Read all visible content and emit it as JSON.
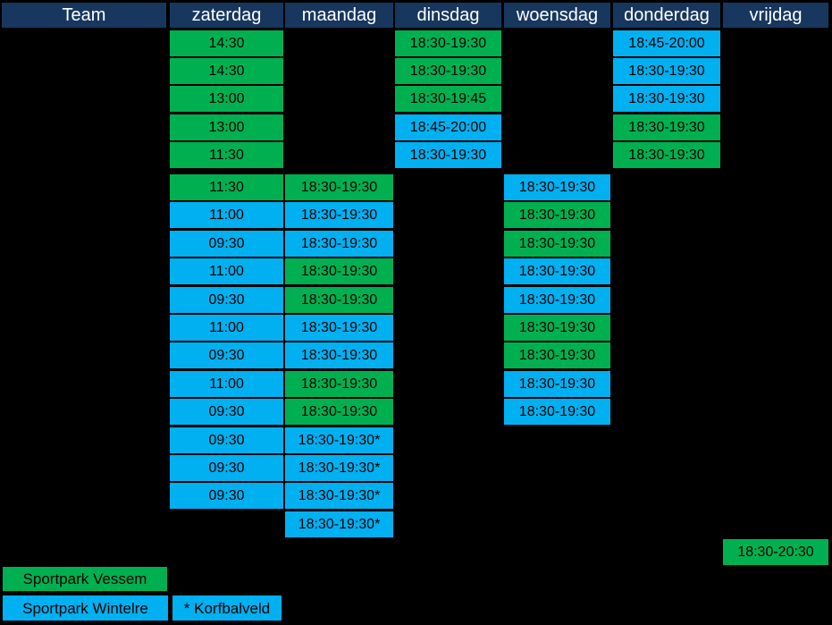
{
  "colors": {
    "background": "#000000",
    "header_bg": "#17375E",
    "header_text": "#FFFFFF",
    "vessem_green": "#00B050",
    "wintelre_blue": "#00B0F0",
    "cell_text": "#000000"
  },
  "columns": [
    {
      "id": "team",
      "label": "Team"
    },
    {
      "id": "zaterdag",
      "label": "zaterdag"
    },
    {
      "id": "maandag",
      "label": "maandag"
    },
    {
      "id": "dinsdag",
      "label": "dinsdag"
    },
    {
      "id": "woensdag",
      "label": "woensdag"
    },
    {
      "id": "donderdag",
      "label": "donderdag"
    },
    {
      "id": "vrijdag",
      "label": "vrijdag"
    }
  ],
  "rows": [
    {
      "cells": [
        {
          "col": "zaterdag",
          "text": "14:30",
          "venue": "vessem"
        },
        {
          "col": "dinsdag",
          "text": "18:30-19:30",
          "venue": "vessem"
        },
        {
          "col": "donderdag",
          "text": "18:45-20:00",
          "venue": "wintelre"
        }
      ]
    },
    {
      "cells": [
        {
          "col": "zaterdag",
          "text": "14:30",
          "venue": "vessem"
        },
        {
          "col": "dinsdag",
          "text": "18:30-19:30",
          "venue": "vessem"
        },
        {
          "col": "donderdag",
          "text": "18:30-19:30",
          "venue": "wintelre"
        }
      ]
    },
    {
      "cells": [
        {
          "col": "zaterdag",
          "text": "13:00",
          "venue": "vessem"
        },
        {
          "col": "dinsdag",
          "text": "18:30-19:45",
          "venue": "vessem"
        },
        {
          "col": "donderdag",
          "text": "18:30-19:30",
          "venue": "wintelre"
        }
      ]
    },
    {
      "cells": [
        {
          "col": "zaterdag",
          "text": "13:00",
          "venue": "vessem"
        },
        {
          "col": "dinsdag",
          "text": "18:45-20:00",
          "venue": "wintelre"
        },
        {
          "col": "donderdag",
          "text": "18:30-19:30",
          "venue": "vessem"
        }
      ]
    },
    {
      "cells": [
        {
          "col": "zaterdag",
          "text": "11:30",
          "venue": "vessem"
        },
        {
          "col": "dinsdag",
          "text": "18:30-19:30",
          "venue": "wintelre"
        },
        {
          "col": "donderdag",
          "text": "18:30-19:30",
          "venue": "vessem"
        }
      ]
    },
    {
      "cells": [
        {
          "col": "zaterdag",
          "text": "11:30",
          "venue": "vessem"
        },
        {
          "col": "maandag",
          "text": "18:30-19:30",
          "venue": "vessem"
        },
        {
          "col": "woensdag",
          "text": "18:30-19:30",
          "venue": "wintelre"
        }
      ]
    },
    {
      "cells": [
        {
          "col": "zaterdag",
          "text": "11:00",
          "venue": "wintelre"
        },
        {
          "col": "maandag",
          "text": "18:30-19:30",
          "venue": "wintelre"
        },
        {
          "col": "woensdag",
          "text": "18:30-19:30",
          "venue": "vessem"
        }
      ]
    },
    {
      "cells": [
        {
          "col": "zaterdag",
          "text": "09:30",
          "venue": "wintelre"
        },
        {
          "col": "maandag",
          "text": "18:30-19:30",
          "venue": "wintelre"
        },
        {
          "col": "woensdag",
          "text": "18:30-19:30",
          "venue": "vessem"
        }
      ]
    },
    {
      "cells": [
        {
          "col": "zaterdag",
          "text": "11:00",
          "venue": "wintelre"
        },
        {
          "col": "maandag",
          "text": "18:30-19:30",
          "venue": "vessem"
        },
        {
          "col": "woensdag",
          "text": "18:30-19:30",
          "venue": "wintelre"
        }
      ]
    },
    {
      "cells": [
        {
          "col": "zaterdag",
          "text": "09:30",
          "venue": "wintelre"
        },
        {
          "col": "maandag",
          "text": "18:30-19:30",
          "venue": "vessem"
        },
        {
          "col": "woensdag",
          "text": "18:30-19:30",
          "venue": "wintelre"
        }
      ]
    },
    {
      "cells": [
        {
          "col": "zaterdag",
          "text": "11:00",
          "venue": "wintelre"
        },
        {
          "col": "maandag",
          "text": "18:30-19:30",
          "venue": "wintelre"
        },
        {
          "col": "woensdag",
          "text": "18:30-19:30",
          "venue": "vessem"
        }
      ]
    },
    {
      "cells": [
        {
          "col": "zaterdag",
          "text": "09:30",
          "venue": "wintelre"
        },
        {
          "col": "maandag",
          "text": "18:30-19:30",
          "venue": "wintelre"
        },
        {
          "col": "woensdag",
          "text": "18:30-19:30",
          "venue": "vessem"
        }
      ]
    },
    {
      "cells": [
        {
          "col": "zaterdag",
          "text": "11:00",
          "venue": "wintelre"
        },
        {
          "col": "maandag",
          "text": "18:30-19:30",
          "venue": "vessem"
        },
        {
          "col": "woensdag",
          "text": "18:30-19:30",
          "venue": "wintelre"
        }
      ]
    },
    {
      "cells": [
        {
          "col": "zaterdag",
          "text": "09:30",
          "venue": "wintelre"
        },
        {
          "col": "maandag",
          "text": "18:30-19:30",
          "venue": "vessem"
        },
        {
          "col": "woensdag",
          "text": "18:30-19:30",
          "venue": "wintelre"
        }
      ]
    },
    {
      "cells": [
        {
          "col": "zaterdag",
          "text": "09:30",
          "venue": "wintelre"
        },
        {
          "col": "maandag",
          "text": "18:30-19:30*",
          "venue": "wintelre"
        }
      ]
    },
    {
      "cells": [
        {
          "col": "zaterdag",
          "text": "09:30",
          "venue": "wintelre"
        },
        {
          "col": "maandag",
          "text": "18:30-19:30*",
          "venue": "wintelre"
        }
      ]
    },
    {
      "cells": [
        {
          "col": "zaterdag",
          "text": "09:30",
          "venue": "wintelre"
        },
        {
          "col": "maandag",
          "text": "18:30-19:30*",
          "venue": "wintelre"
        }
      ]
    },
    {
      "cells": [
        {
          "col": "maandag",
          "text": "18:30-19:30*",
          "venue": "wintelre"
        }
      ]
    },
    {
      "cells": [
        {
          "col": "vrijdag",
          "text": "18:30-20:30",
          "venue": "vessem"
        }
      ]
    }
  ],
  "legend": [
    {
      "label": "Sportpark Vessem",
      "venue": "vessem"
    },
    {
      "label": "Sportpark Wintelre",
      "venue": "wintelre"
    },
    {
      "label": "* Korfbalveld",
      "venue": "wintelre"
    }
  ]
}
